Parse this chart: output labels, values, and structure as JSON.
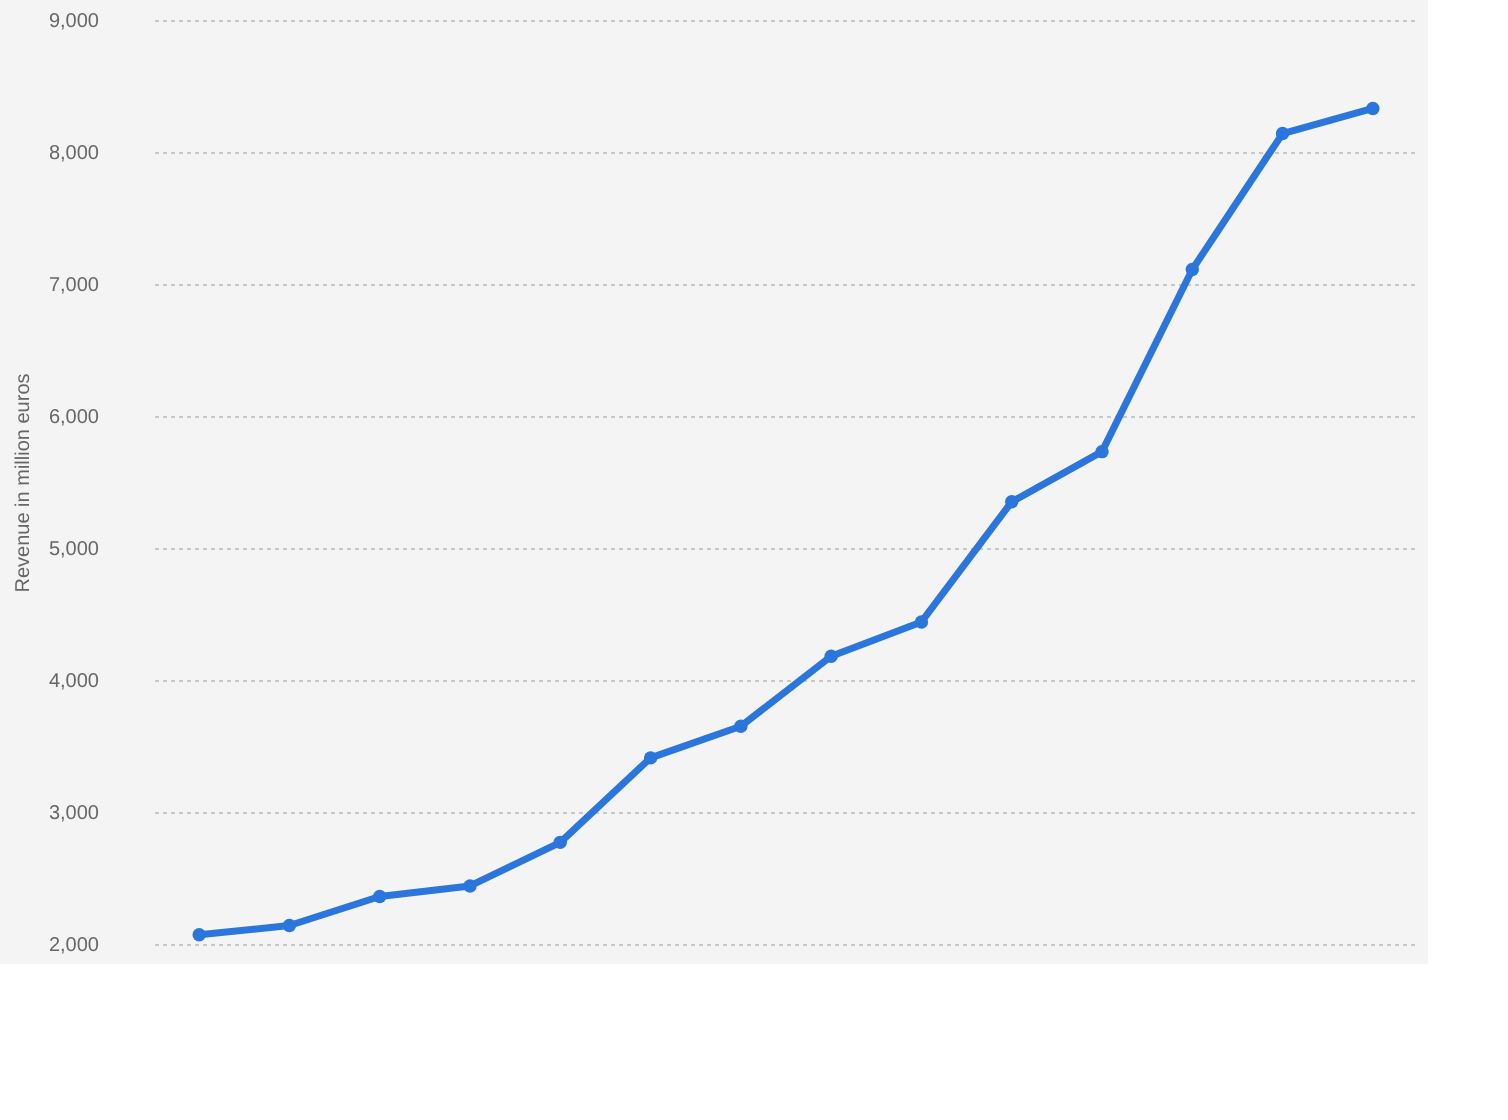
{
  "chart_data": {
    "type": "line",
    "ylabel": "Revenue in million euros",
    "categories": [
      null,
      null,
      null,
      null,
      null,
      null,
      null,
      null,
      null,
      null,
      null,
      null,
      null,
      null
    ],
    "series": [
      {
        "color": "#2a76dd",
        "values": [
          2070,
          2140,
          2360,
          2440,
          2770,
          3410,
          3650,
          4180,
          4440,
          5350,
          5730,
          7110,
          8140,
          8330
        ]
      }
    ],
    "ylim": [
      2000,
      9000
    ],
    "yticks": [
      {
        "value": 2000,
        "label": "2,000"
      },
      {
        "value": 3000,
        "label": "3,000"
      },
      {
        "value": 4000,
        "label": "4,000"
      },
      {
        "value": 5000,
        "label": "5,000"
      },
      {
        "value": 6000,
        "label": "6,000"
      },
      {
        "value": 7000,
        "label": "7,000"
      },
      {
        "value": 8000,
        "label": "8,000"
      },
      {
        "value": 9000,
        "label": "9,000"
      }
    ],
    "grid": "y",
    "marker": "circle",
    "line_style": "solid",
    "tick_labels": "y"
  }
}
